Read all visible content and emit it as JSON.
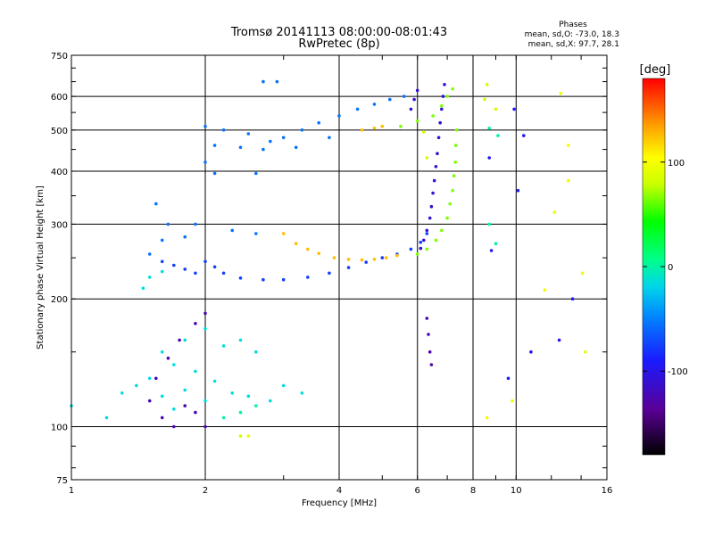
{
  "chart_data": {
    "type": "scatter",
    "title": "Tromsø 20141113 08:00:00-08:01:43",
    "subtitle": "RwPretec (8p)",
    "xlabel": "Frequency [MHz]",
    "ylabel": "Stationary phase Virtual Height [km]",
    "x_scale": "log",
    "y_scale": "log",
    "xlim": [
      1,
      16
    ],
    "ylim": [
      75,
      750
    ],
    "x_ticks": [
      "1",
      "2",
      "4",
      "6",
      "8",
      "10",
      "16"
    ],
    "x_tick_values": [
      1,
      2,
      4,
      6,
      8,
      10,
      16
    ],
    "y_ticks": [
      "75",
      "100",
      "200",
      "300",
      "400",
      "500",
      "600",
      "750"
    ],
    "y_tick_values": [
      75,
      100,
      200,
      300,
      400,
      500,
      600,
      750
    ],
    "grid": true,
    "phases": {
      "title": "Phases",
      "line_o": "mean, sd,O: -73.0, 18.3",
      "line_x": "mean, sd,X:  97.7, 28.1"
    },
    "colorbar": {
      "label": "[deg]",
      "range": [
        -180,
        180
      ],
      "ticks": [
        "100",
        "0",
        "-100"
      ],
      "tick_values": [
        100,
        0,
        -100
      ]
    },
    "series": [
      {
        "phase_deg": -110,
        "points": [
          [
            6.1,
            263
          ],
          [
            6.2,
            275
          ],
          [
            6.3,
            290
          ],
          [
            6.4,
            310
          ],
          [
            6.45,
            330
          ],
          [
            6.5,
            355
          ],
          [
            6.55,
            380
          ],
          [
            6.6,
            410
          ],
          [
            6.65,
            440
          ],
          [
            6.7,
            480
          ],
          [
            6.75,
            520
          ],
          [
            6.8,
            560
          ],
          [
            6.85,
            600
          ],
          [
            6.9,
            640
          ],
          [
            5.8,
            560
          ],
          [
            5.9,
            590
          ],
          [
            6.0,
            620
          ]
        ]
      },
      {
        "phase_deg": -75,
        "points": [
          [
            2.0,
            245
          ],
          [
            2.2,
            230
          ],
          [
            2.4,
            224
          ],
          [
            2.7,
            222
          ],
          [
            3.0,
            222
          ],
          [
            3.4,
            225
          ],
          [
            3.8,
            230
          ],
          [
            4.2,
            237
          ],
          [
            4.6,
            244
          ],
          [
            5.0,
            250
          ],
          [
            5.4,
            255
          ],
          [
            5.8,
            262
          ],
          [
            6.1,
            272
          ],
          [
            6.3,
            285
          ],
          [
            1.9,
            230
          ],
          [
            1.8,
            235
          ],
          [
            1.7,
            240
          ],
          [
            1.6,
            245
          ],
          [
            2.1,
            238
          ]
        ]
      },
      {
        "phase_deg": 65,
        "points": [
          [
            6.0,
            255
          ],
          [
            6.3,
            262
          ],
          [
            6.6,
            275
          ],
          [
            6.8,
            290
          ],
          [
            7.0,
            310
          ],
          [
            7.1,
            335
          ],
          [
            7.2,
            360
          ],
          [
            7.25,
            390
          ],
          [
            7.3,
            420
          ],
          [
            7.32,
            460
          ],
          [
            7.35,
            500
          ],
          [
            6.5,
            540
          ],
          [
            6.8,
            570
          ],
          [
            7.0,
            600
          ],
          [
            7.2,
            625
          ],
          [
            5.5,
            510
          ],
          [
            6.0,
            525
          ]
        ]
      },
      {
        "phase_deg": 125,
        "points": [
          [
            3.0,
            285
          ],
          [
            3.2,
            270
          ],
          [
            3.4,
            262
          ],
          [
            3.6,
            256
          ],
          [
            3.9,
            250
          ],
          [
            4.2,
            248
          ],
          [
            4.5,
            247
          ],
          [
            4.8,
            248
          ],
          [
            5.1,
            250
          ],
          [
            5.4,
            253
          ],
          [
            4.5,
            500
          ],
          [
            4.8,
            505
          ],
          [
            5.0,
            510
          ]
        ]
      },
      {
        "phase_deg": -55,
        "points": [
          [
            2.0,
            510
          ],
          [
            2.2,
            500
          ],
          [
            2.5,
            490
          ],
          [
            2.8,
            470
          ],
          [
            3.0,
            480
          ],
          [
            3.3,
            500
          ],
          [
            3.6,
            520
          ],
          [
            4.0,
            540
          ],
          [
            4.4,
            560
          ],
          [
            4.8,
            575
          ],
          [
            5.2,
            590
          ],
          [
            5.6,
            600
          ],
          [
            2.1,
            460
          ],
          [
            2.4,
            455
          ],
          [
            2.7,
            450
          ],
          [
            3.2,
            455
          ],
          [
            3.8,
            480
          ],
          [
            2.0,
            420
          ],
          [
            2.1,
            395
          ],
          [
            2.6,
            395
          ],
          [
            2.7,
            650
          ],
          [
            2.9,
            650
          ],
          [
            1.8,
            280
          ],
          [
            1.9,
            300
          ],
          [
            2.3,
            290
          ],
          [
            2.6,
            285
          ],
          [
            1.6,
            275
          ],
          [
            1.5,
            255
          ],
          [
            1.65,
            300
          ],
          [
            1.55,
            335
          ]
        ]
      },
      {
        "phase_deg": -15,
        "points": [
          [
            1.3,
            120
          ],
          [
            1.4,
            125
          ],
          [
            1.5,
            130
          ],
          [
            1.6,
            118
          ],
          [
            1.7,
            110
          ],
          [
            1.8,
            122
          ],
          [
            1.9,
            135
          ],
          [
            2.0,
            115
          ],
          [
            2.1,
            128
          ],
          [
            2.3,
            120
          ],
          [
            2.5,
            118
          ],
          [
            2.8,
            115
          ],
          [
            1.6,
            150
          ],
          [
            1.8,
            160
          ],
          [
            2.0,
            170
          ],
          [
            2.2,
            155
          ],
          [
            1.2,
            105
          ],
          [
            1.0,
            112
          ],
          [
            1.7,
            140
          ],
          [
            2.4,
            160
          ],
          [
            2.6,
            150
          ],
          [
            3.0,
            125
          ],
          [
            3.3,
            120
          ],
          [
            1.45,
            212
          ],
          [
            1.5,
            225
          ],
          [
            1.6,
            232
          ]
        ]
      },
      {
        "phase_deg": -125,
        "points": [
          [
            1.6,
            105
          ],
          [
            1.7,
            100
          ],
          [
            1.8,
            112
          ],
          [
            1.9,
            108
          ],
          [
            2.0,
            100
          ],
          [
            1.5,
            115
          ],
          [
            1.55,
            130
          ],
          [
            1.65,
            145
          ],
          [
            1.75,
            160
          ],
          [
            1.9,
            175
          ],
          [
            2.0,
            185
          ],
          [
            6.3,
            180
          ],
          [
            6.35,
            165
          ],
          [
            6.4,
            150
          ],
          [
            6.45,
            140
          ]
        ]
      },
      {
        "phase_deg": 0,
        "points": [
          [
            2.2,
            105
          ],
          [
            2.4,
            108
          ],
          [
            2.6,
            112
          ],
          [
            8.7,
            505
          ],
          [
            9.1,
            485
          ],
          [
            8.7,
            300
          ],
          [
            9.0,
            270
          ]
        ]
      },
      {
        "phase_deg": 80,
        "points": [
          [
            8.6,
            640
          ],
          [
            8.5,
            590
          ],
          [
            9.0,
            560
          ],
          [
            2.4,
            95
          ],
          [
            6.2,
            495
          ],
          [
            6.3,
            430
          ]
        ]
      },
      {
        "phase_deg": 95,
        "points": [
          [
            12.6,
            610
          ],
          [
            13.1,
            460
          ],
          [
            13.1,
            380
          ],
          [
            12.2,
            320
          ],
          [
            14.1,
            230
          ],
          [
            14.3,
            150
          ],
          [
            11.6,
            210
          ],
          [
            9.8,
            115
          ],
          [
            8.6,
            105
          ],
          [
            2.5,
            95
          ]
        ]
      },
      {
        "phase_deg": -95,
        "points": [
          [
            9.6,
            130
          ],
          [
            10.4,
            485
          ],
          [
            9.9,
            560
          ],
          [
            8.8,
            260
          ],
          [
            10.1,
            360
          ],
          [
            13.4,
            200
          ],
          [
            12.5,
            160
          ],
          [
            10.8,
            150
          ],
          [
            8.7,
            430
          ]
        ]
      }
    ]
  }
}
